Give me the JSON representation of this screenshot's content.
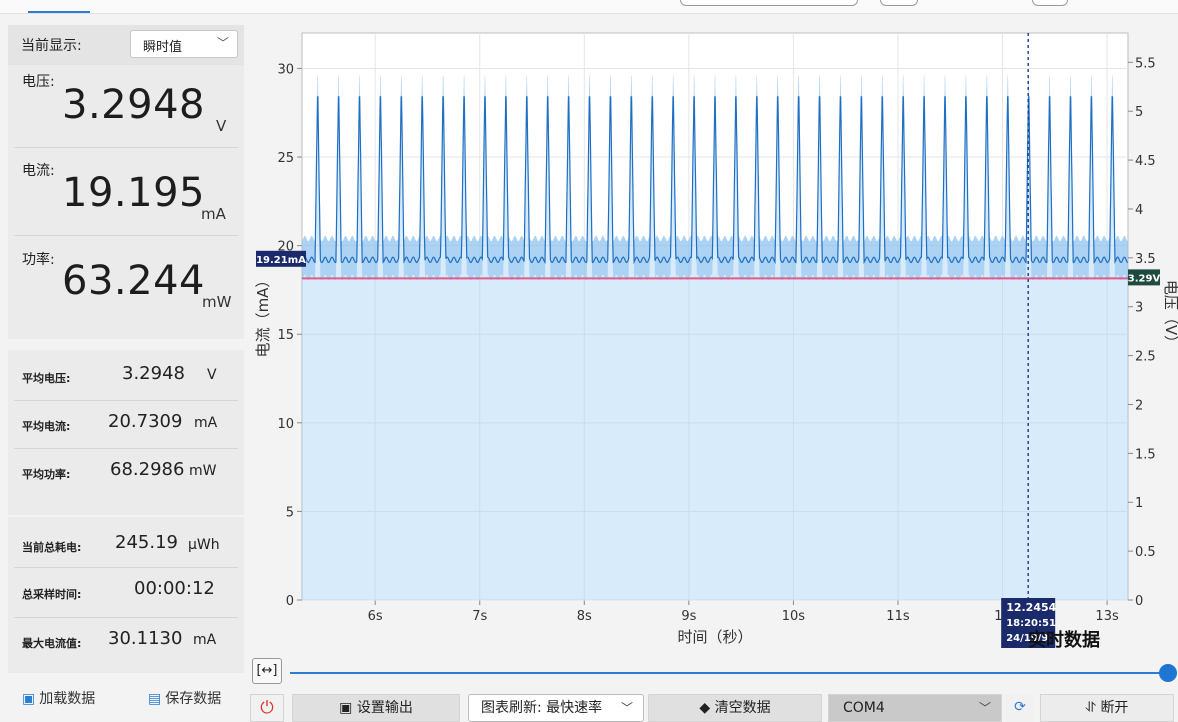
{
  "left_panel": {
    "display_label": "当前显示:",
    "display_mode": "瞬时值",
    "voltage": {
      "label": "电压:",
      "value": "3.2948",
      "unit": "V"
    },
    "current": {
      "label": "电流:",
      "value": "19.195",
      "unit": "mA"
    },
    "power": {
      "label": "功率:",
      "value": "63.244",
      "unit": "mW"
    },
    "avg_voltage": {
      "label": "平均电压:",
      "value": "3.2948",
      "unit": "V"
    },
    "avg_current": {
      "label": "平均电流:",
      "value": "20.7309",
      "unit": "mA"
    },
    "avg_power": {
      "label": "平均功率:",
      "value": "68.2986",
      "unit": "mW"
    },
    "total_energy": {
      "label": "当前总耗电:",
      "value": "245.19",
      "unit": "μWh"
    },
    "sample_time": {
      "label": "总采样时间:",
      "value": "00:00:12"
    },
    "max_current": {
      "label": "最大电流值:",
      "value": "30.1130",
      "unit": "mA"
    },
    "load_button": "加载数据",
    "save_button": "保存数据"
  },
  "chart": {
    "title": "实时数据",
    "current_marker": "19.21mA",
    "voltage_marker": "3.29V",
    "cursor": {
      "value": "12.2454",
      "time": "18:20:51",
      "date": "24/10/9"
    }
  },
  "bottom_bar": {
    "settings_button": "设置输出",
    "refresh_label": "图表刷新:",
    "refresh_value": "最快速率",
    "clear_button": "清空数据",
    "port": "COM4",
    "disconnect_button": "断开"
  },
  "colors": {
    "accent": "#2b7cd3",
    "fill": "#a9d3f3",
    "voltage_line": "#e05a8a"
  },
  "chart_data": {
    "type": "line",
    "xlabel": "时间（秒）",
    "ylabel": "电流（mA）",
    "y2label": "电压（V）",
    "xlim": [
      5.3,
      13.2
    ],
    "ylim": [
      0,
      32
    ],
    "y2lim": [
      0,
      5.8
    ],
    "x_ticks": [
      "6s",
      "7s",
      "8s",
      "9s",
      "10s",
      "11s",
      "12",
      "13s"
    ],
    "y_ticks": [
      0,
      5,
      10,
      15,
      20,
      25,
      30
    ],
    "y2_ticks": [
      "0",
      "0.5",
      "1",
      "1.5",
      "2",
      "2.5",
      "3",
      "3.5",
      "4",
      "4.5",
      "5",
      "5.5"
    ],
    "grid": true,
    "series": [
      {
        "baseline": 19.2,
        "spike_peak": 29.2,
        "spike_period_s": 0.2,
        "first_spike_s": 5.45
      },
      {
        "value": 3.29
      }
    ],
    "cursor_x": 12.2454
  }
}
